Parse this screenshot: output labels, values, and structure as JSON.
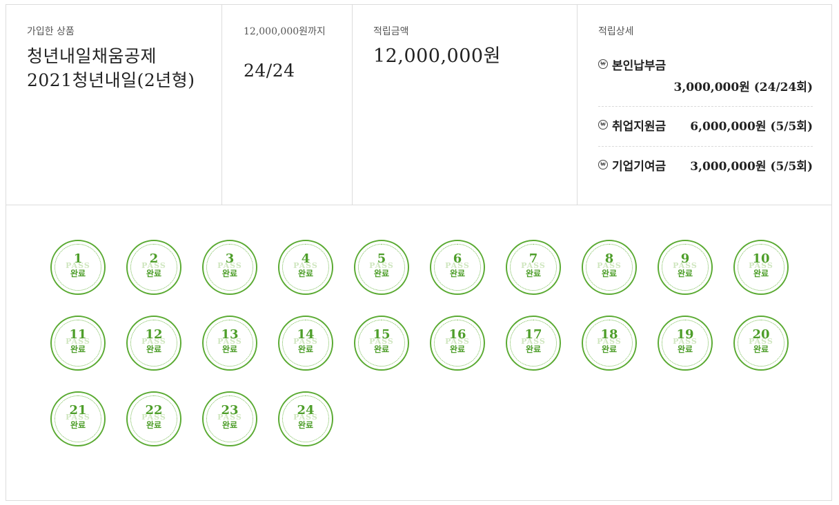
{
  "product": {
    "label": "가입한 상품",
    "name_line1": "청년내일채움공제",
    "name_line2": "2021청년내일(2년형)"
  },
  "progress": {
    "label": "12,000,000원까지",
    "value": "24/24"
  },
  "saved": {
    "label": "적립금액",
    "amount": "12,000,000원"
  },
  "details": {
    "label": "적립상세",
    "items": [
      {
        "icon": "won-icon",
        "name": "본인납부금",
        "amount": "3,000,000원 (24/24회)"
      },
      {
        "icon": "won-icon",
        "name": "취업지원금",
        "amount": "6,000,000원 (5/5회)"
      },
      {
        "icon": "won-icon",
        "name": "기업기여금",
        "amount": "3,000,000원 (5/5회)"
      }
    ]
  },
  "stamp_done_label": "완료",
  "stamps": [
    "1",
    "2",
    "3",
    "4",
    "5",
    "6",
    "7",
    "8",
    "9",
    "10",
    "11",
    "12",
    "13",
    "14",
    "15",
    "16",
    "17",
    "18",
    "19",
    "20",
    "21",
    "22",
    "23",
    "24"
  ],
  "colors": {
    "stamp_green": "#5aaa32",
    "border": "#dcdcdc"
  }
}
